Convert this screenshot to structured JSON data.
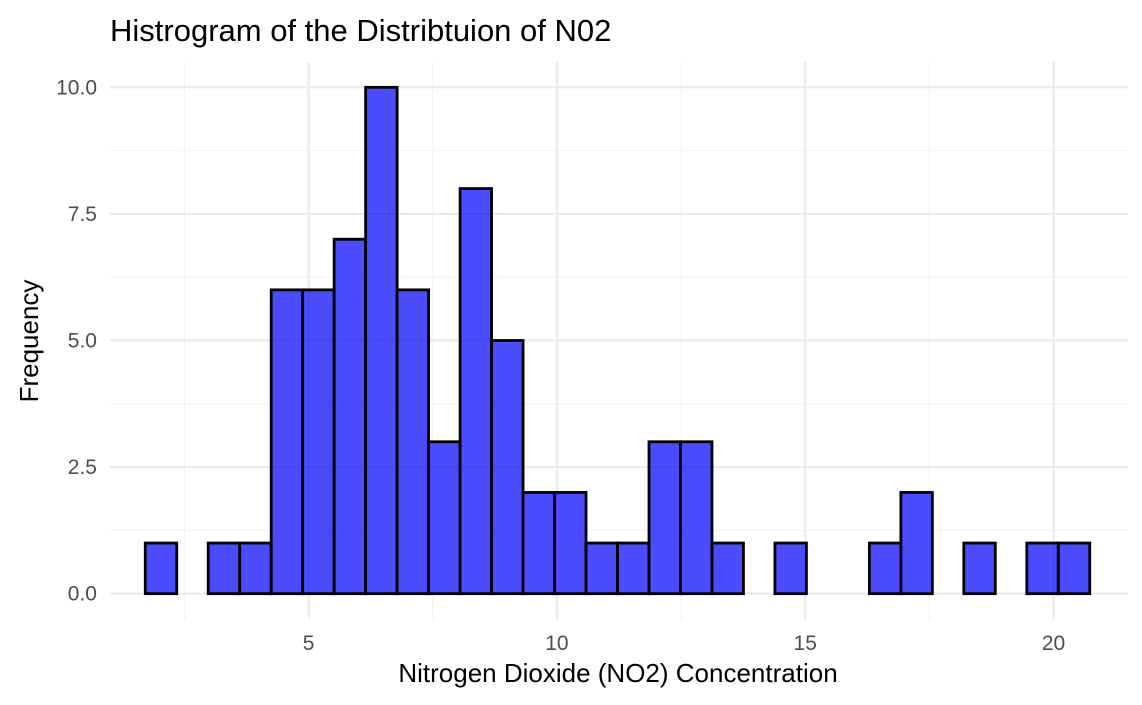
{
  "chart_data": {
    "type": "bar",
    "title": "Histrogram of the Distribtuion of N02",
    "xlabel": "Nitrogen Dioxide (NO2) Concentration",
    "ylabel": "Frequency",
    "bin_width": 0.634,
    "bin_start": 1.71,
    "values": [
      1,
      0,
      1,
      1,
      6,
      6,
      7,
      10,
      6,
      3,
      8,
      5,
      2,
      2,
      1,
      1,
      3,
      3,
      1,
      0,
      1,
      0,
      0,
      1,
      2,
      0,
      1,
      0,
      1,
      1
    ],
    "xlim": [
      1.0,
      21.5
    ],
    "ylim": [
      -0.5,
      10.5
    ],
    "x_ticks": [
      5,
      10,
      15,
      20
    ],
    "x_tick_labels": [
      "5",
      "10",
      "15",
      "20"
    ],
    "y_ticks": [
      0,
      2.5,
      5,
      7.5,
      10
    ],
    "y_tick_labels": [
      "0.0",
      "2.5",
      "5.0",
      "7.5",
      "10.0"
    ],
    "fill_color": "#0000ff",
    "fill_opacity": 0.7,
    "outline_color": "#000000",
    "grid": true,
    "legend": "none"
  }
}
